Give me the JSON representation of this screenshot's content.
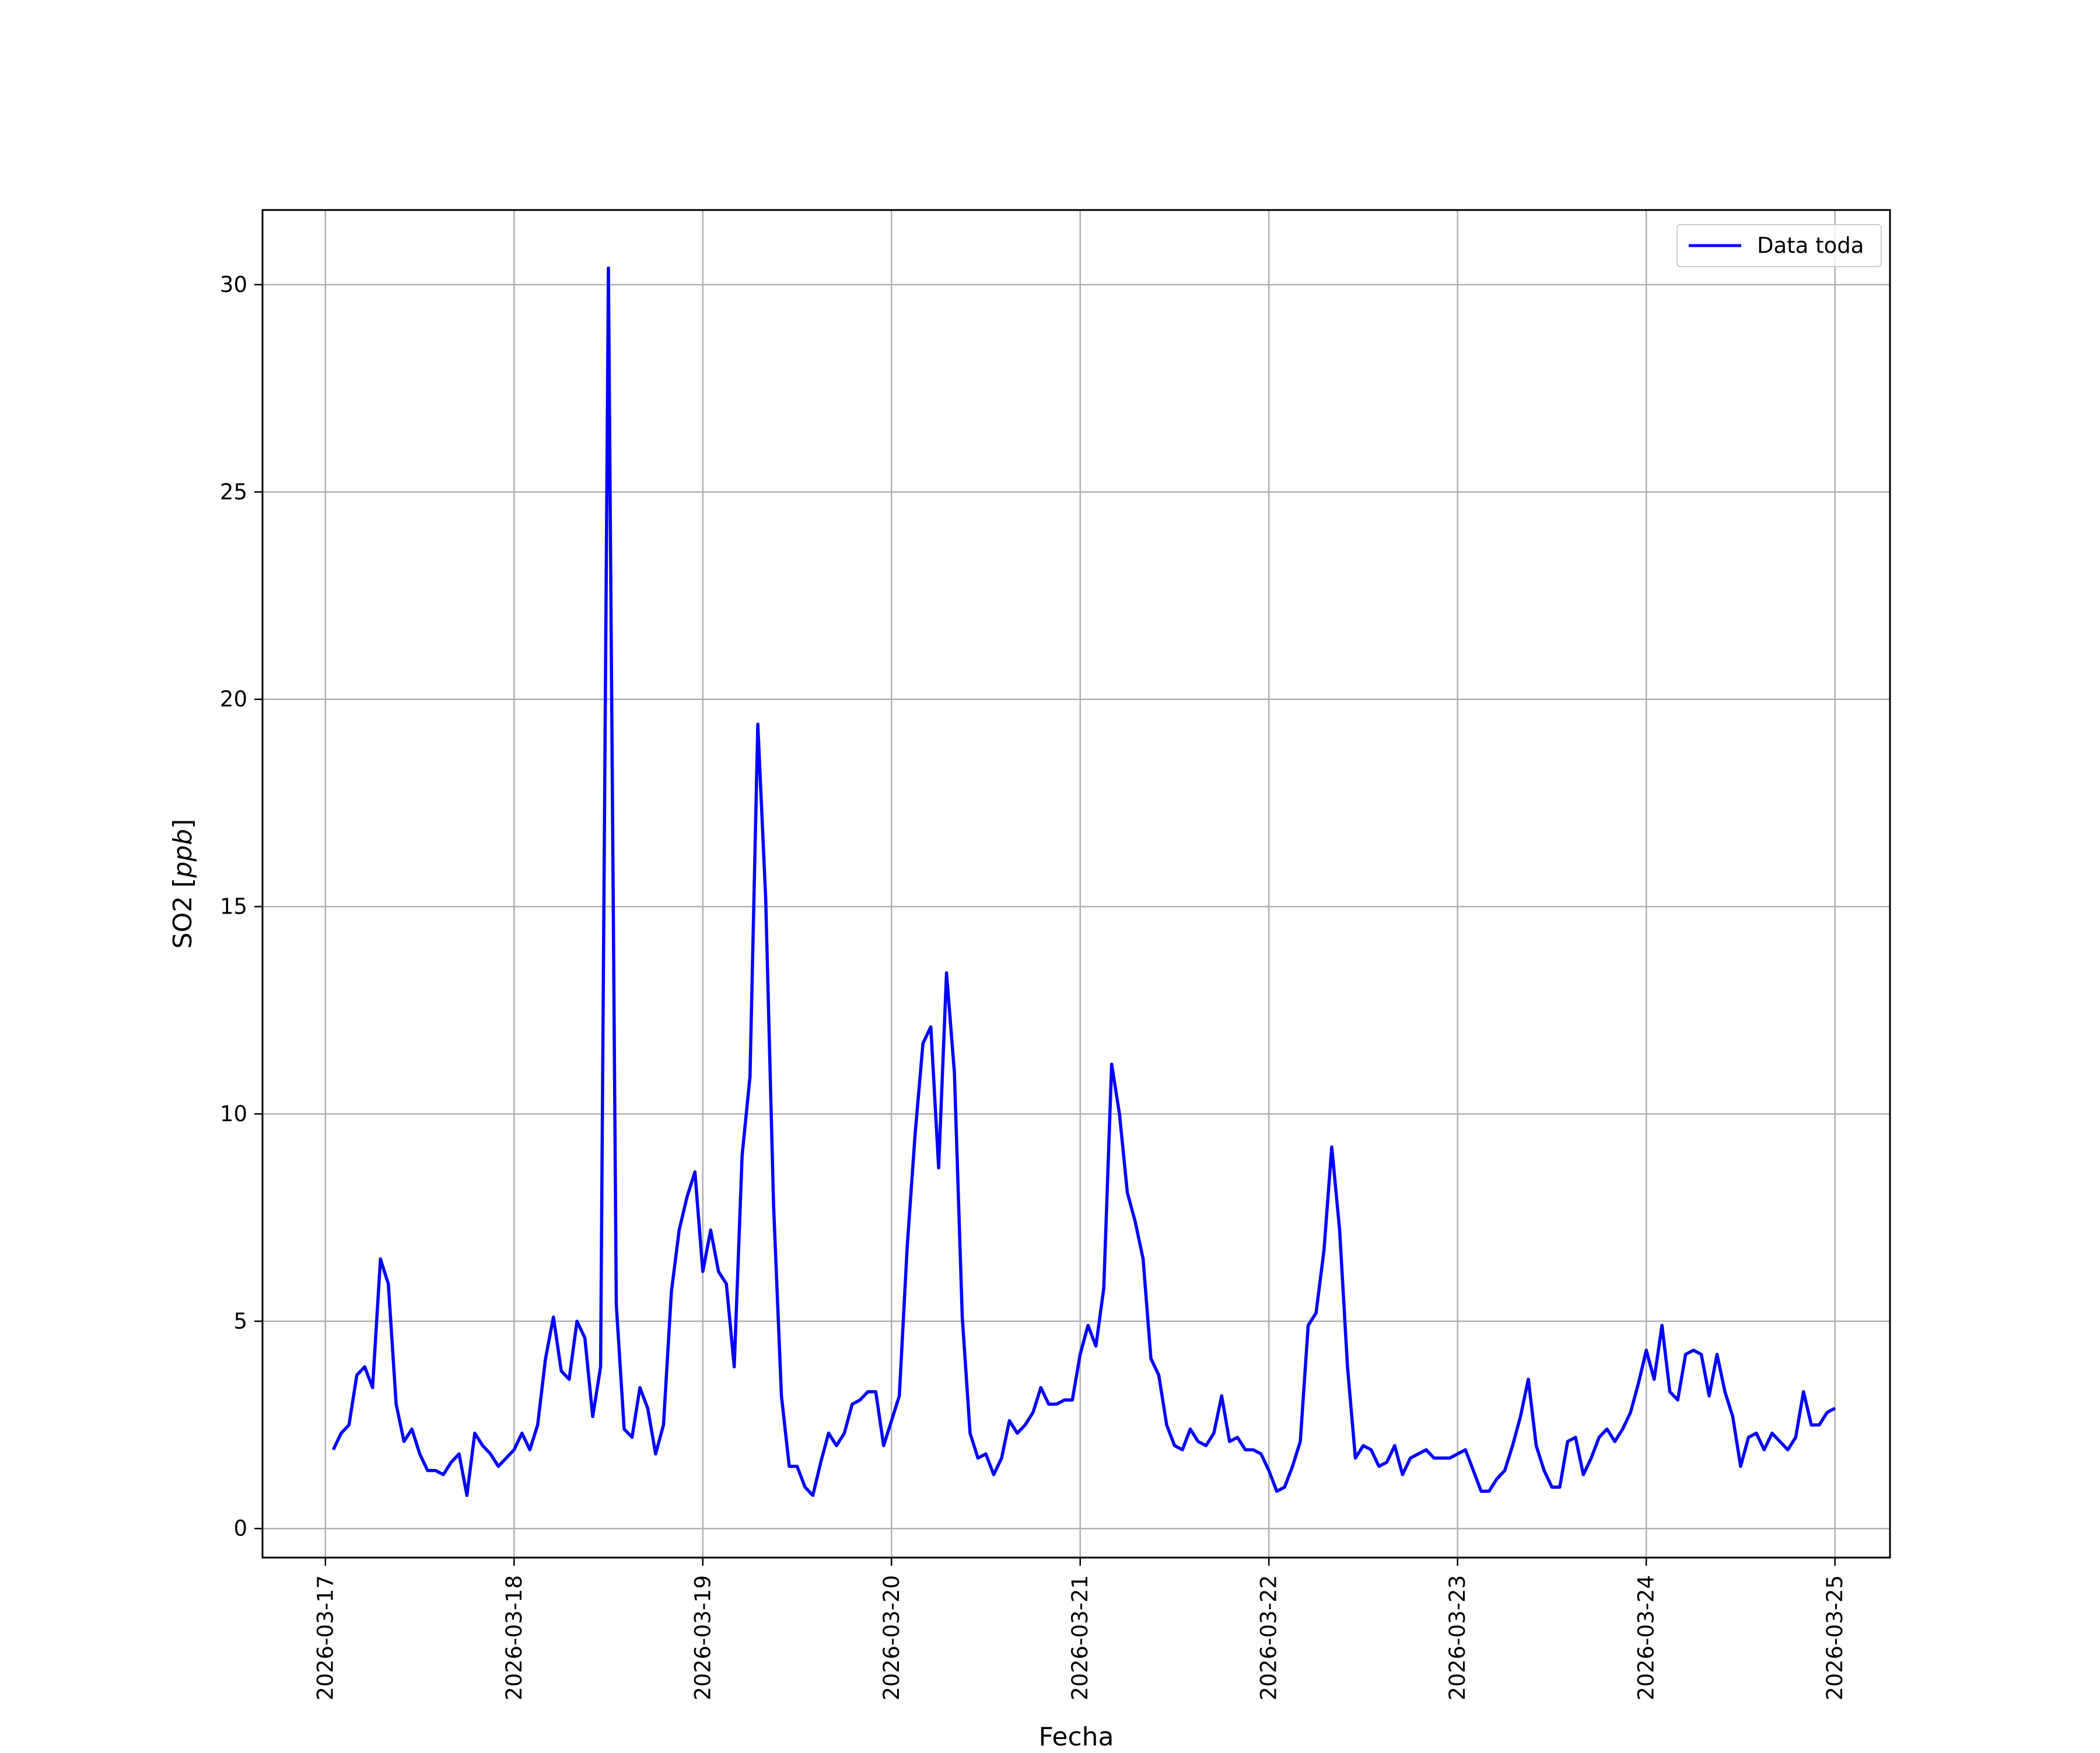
{
  "chart_data": {
    "type": "line",
    "title": "",
    "xlabel": "Fecha",
    "ylabel": "SO2 [ppb]",
    "ylabel_parts": {
      "prefix": "SO2 [",
      "unit": "ppb",
      "suffix": "]"
    },
    "xlim": [
      "2026-03-16T16:00",
      "2026-03-25T07:00"
    ],
    "ylim": [
      -0.7,
      31.8
    ],
    "x_ticks": [
      "2026-03-17",
      "2026-03-18",
      "2026-03-19",
      "2026-03-20",
      "2026-03-21",
      "2026-03-22",
      "2026-03-23",
      "2026-03-24",
      "2026-03-25"
    ],
    "y_ticks": [
      0,
      5,
      10,
      15,
      20,
      25,
      30
    ],
    "y_tick_labels": [
      "0",
      "5",
      "10",
      "15",
      "20",
      "25",
      "30"
    ],
    "grid": true,
    "legend": {
      "placement": "upper right",
      "entries": [
        "Data toda"
      ]
    },
    "series": [
      {
        "name": "Data toda",
        "color": "#0000ff",
        "x": [
          "2026-03-17T01:00",
          "2026-03-17T02:00",
          "2026-03-17T03:00",
          "2026-03-17T04:00",
          "2026-03-17T05:00",
          "2026-03-17T06:00",
          "2026-03-17T07:00",
          "2026-03-17T08:00",
          "2026-03-17T09:00",
          "2026-03-17T10:00",
          "2026-03-17T11:00",
          "2026-03-17T12:00",
          "2026-03-17T13:00",
          "2026-03-17T14:00",
          "2026-03-17T15:00",
          "2026-03-17T16:00",
          "2026-03-17T17:00",
          "2026-03-17T18:00",
          "2026-03-17T19:00",
          "2026-03-17T20:00",
          "2026-03-17T21:00",
          "2026-03-17T22:00",
          "2026-03-17T23:00",
          "2026-03-18T00:00",
          "2026-03-18T01:00",
          "2026-03-18T02:00",
          "2026-03-18T03:00",
          "2026-03-18T04:00",
          "2026-03-18T05:00",
          "2026-03-18T06:00",
          "2026-03-18T07:00",
          "2026-03-18T08:00",
          "2026-03-18T09:00",
          "2026-03-18T10:00",
          "2026-03-18T11:00",
          "2026-03-18T12:00",
          "2026-03-18T13:00",
          "2026-03-18T14:00",
          "2026-03-18T15:00",
          "2026-03-18T16:00",
          "2026-03-18T17:00",
          "2026-03-18T18:00",
          "2026-03-18T19:00",
          "2026-03-18T20:00",
          "2026-03-18T21:00",
          "2026-03-18T22:00",
          "2026-03-18T23:00",
          "2026-03-19T00:00",
          "2026-03-19T01:00",
          "2026-03-19T02:00",
          "2026-03-19T03:00",
          "2026-03-19T04:00",
          "2026-03-19T05:00",
          "2026-03-19T06:00",
          "2026-03-19T07:00",
          "2026-03-19T08:00",
          "2026-03-19T09:00",
          "2026-03-19T10:00",
          "2026-03-19T11:00",
          "2026-03-19T12:00",
          "2026-03-19T13:00",
          "2026-03-19T14:00",
          "2026-03-19T15:00",
          "2026-03-19T16:00",
          "2026-03-19T17:00",
          "2026-03-19T18:00",
          "2026-03-19T19:00",
          "2026-03-19T20:00",
          "2026-03-19T21:00",
          "2026-03-19T22:00",
          "2026-03-19T23:00",
          "2026-03-20T00:00",
          "2026-03-20T01:00",
          "2026-03-20T02:00",
          "2026-03-20T03:00",
          "2026-03-20T04:00",
          "2026-03-20T05:00",
          "2026-03-20T06:00",
          "2026-03-20T07:00",
          "2026-03-20T08:00",
          "2026-03-20T09:00",
          "2026-03-20T10:00",
          "2026-03-20T11:00",
          "2026-03-20T12:00",
          "2026-03-20T13:00",
          "2026-03-20T14:00",
          "2026-03-20T15:00",
          "2026-03-20T16:00",
          "2026-03-20T17:00",
          "2026-03-20T18:00",
          "2026-03-20T19:00",
          "2026-03-20T20:00",
          "2026-03-20T21:00",
          "2026-03-20T22:00",
          "2026-03-20T23:00",
          "2026-03-21T00:00",
          "2026-03-21T01:00",
          "2026-03-21T02:00",
          "2026-03-21T03:00",
          "2026-03-21T04:00",
          "2026-03-21T05:00",
          "2026-03-21T06:00",
          "2026-03-21T07:00",
          "2026-03-21T08:00",
          "2026-03-21T09:00",
          "2026-03-21T10:00",
          "2026-03-21T11:00",
          "2026-03-21T12:00",
          "2026-03-21T13:00",
          "2026-03-21T14:00",
          "2026-03-21T15:00",
          "2026-03-21T16:00",
          "2026-03-21T17:00",
          "2026-03-21T18:00",
          "2026-03-21T19:00",
          "2026-03-21T20:00",
          "2026-03-21T21:00",
          "2026-03-21T22:00",
          "2026-03-21T23:00",
          "2026-03-22T00:00",
          "2026-03-22T01:00",
          "2026-03-22T02:00",
          "2026-03-22T03:00",
          "2026-03-22T04:00",
          "2026-03-22T05:00",
          "2026-03-22T06:00",
          "2026-03-22T07:00",
          "2026-03-22T08:00",
          "2026-03-22T09:00",
          "2026-03-22T10:00",
          "2026-03-22T11:00",
          "2026-03-22T12:00",
          "2026-03-22T13:00",
          "2026-03-22T14:00",
          "2026-03-22T15:00",
          "2026-03-22T16:00",
          "2026-03-22T17:00",
          "2026-03-22T18:00",
          "2026-03-22T19:00",
          "2026-03-22T20:00",
          "2026-03-22T21:00",
          "2026-03-22T22:00",
          "2026-03-22T23:00",
          "2026-03-23T00:00",
          "2026-03-23T01:00",
          "2026-03-23T02:00",
          "2026-03-23T03:00",
          "2026-03-23T04:00",
          "2026-03-23T05:00",
          "2026-03-23T06:00",
          "2026-03-23T07:00",
          "2026-03-23T08:00",
          "2026-03-23T09:00",
          "2026-03-23T10:00",
          "2026-03-23T11:00",
          "2026-03-23T12:00",
          "2026-03-23T13:00",
          "2026-03-23T14:00",
          "2026-03-23T15:00",
          "2026-03-23T16:00",
          "2026-03-23T17:00",
          "2026-03-23T18:00",
          "2026-03-23T19:00",
          "2026-03-23T20:00",
          "2026-03-23T21:00",
          "2026-03-23T22:00",
          "2026-03-23T23:00",
          "2026-03-24T00:00",
          "2026-03-24T01:00",
          "2026-03-24T02:00",
          "2026-03-24T03:00",
          "2026-03-24T04:00",
          "2026-03-24T05:00",
          "2026-03-24T06:00",
          "2026-03-24T07:00",
          "2026-03-24T08:00",
          "2026-03-24T09:00",
          "2026-03-24T10:00",
          "2026-03-24T11:00",
          "2026-03-24T12:00",
          "2026-03-24T13:00",
          "2026-03-24T14:00",
          "2026-03-24T15:00",
          "2026-03-24T16:00",
          "2026-03-24T17:00",
          "2026-03-24T18:00",
          "2026-03-24T19:00",
          "2026-03-24T20:00",
          "2026-03-24T21:00",
          "2026-03-24T22:00",
          "2026-03-24T23:00",
          "2026-03-25T00:00"
        ],
        "values": [
          1.9,
          2.3,
          2.5,
          3.7,
          3.9,
          3.4,
          6.5,
          5.9,
          3.0,
          2.1,
          2.4,
          1.8,
          1.4,
          1.4,
          1.3,
          1.6,
          1.8,
          0.8,
          2.3,
          2.0,
          1.8,
          1.5,
          1.7,
          1.9,
          2.3,
          1.9,
          2.5,
          4.1,
          5.1,
          3.8,
          3.6,
          5.0,
          4.6,
          2.7,
          3.9,
          30.4,
          5.4,
          2.4,
          2.2,
          3.4,
          2.9,
          1.8,
          2.5,
          5.7,
          7.2,
          8.0,
          8.6,
          6.2,
          7.2,
          6.2,
          5.9,
          3.9,
          9.0,
          10.9,
          19.4,
          15.2,
          7.8,
          3.2,
          1.5,
          1.5,
          1.0,
          0.8,
          1.6,
          2.3,
          2.0,
          2.3,
          3.0,
          3.1,
          3.3,
          3.3,
          2.0,
          2.6,
          3.2,
          6.8,
          9.5,
          11.7,
          12.1,
          8.7,
          13.4,
          11.0,
          5.1,
          2.3,
          1.7,
          1.8,
          1.3,
          1.7,
          2.6,
          2.3,
          2.5,
          2.8,
          3.4,
          3.0,
          3.0,
          3.1,
          3.1,
          4.2,
          4.9,
          4.4,
          5.8,
          11.2,
          10.0,
          8.1,
          7.4,
          6.5,
          4.1,
          3.7,
          2.5,
          2.0,
          1.9,
          2.4,
          2.1,
          2.0,
          2.3,
          3.2,
          2.1,
          2.2,
          1.9,
          1.9,
          1.8,
          1.4,
          0.9,
          1.0,
          1.5,
          2.1,
          4.9,
          5.2,
          6.7,
          9.2,
          7.2,
          3.9,
          1.7,
          2.0,
          1.9,
          1.5,
          1.6,
          2.0,
          1.3,
          1.7,
          1.8,
          1.9,
          1.7,
          1.7,
          1.7,
          1.8,
          1.9,
          1.4,
          0.9,
          0.9,
          1.2,
          1.4,
          2.0,
          2.7,
          3.6,
          2.0,
          1.4,
          1.0,
          1.0,
          2.1,
          2.2,
          1.3,
          1.7,
          2.2,
          2.4,
          2.1,
          2.4,
          2.8,
          3.5,
          4.3,
          3.6,
          4.9,
          3.3,
          3.1,
          4.2,
          4.3,
          4.2,
          3.2,
          4.2,
          3.3,
          2.7,
          1.5,
          2.2,
          2.3,
          1.9,
          2.3,
          2.1,
          1.9,
          2.2,
          3.3,
          2.5,
          2.5,
          2.8,
          2.9
        ]
      }
    ]
  }
}
